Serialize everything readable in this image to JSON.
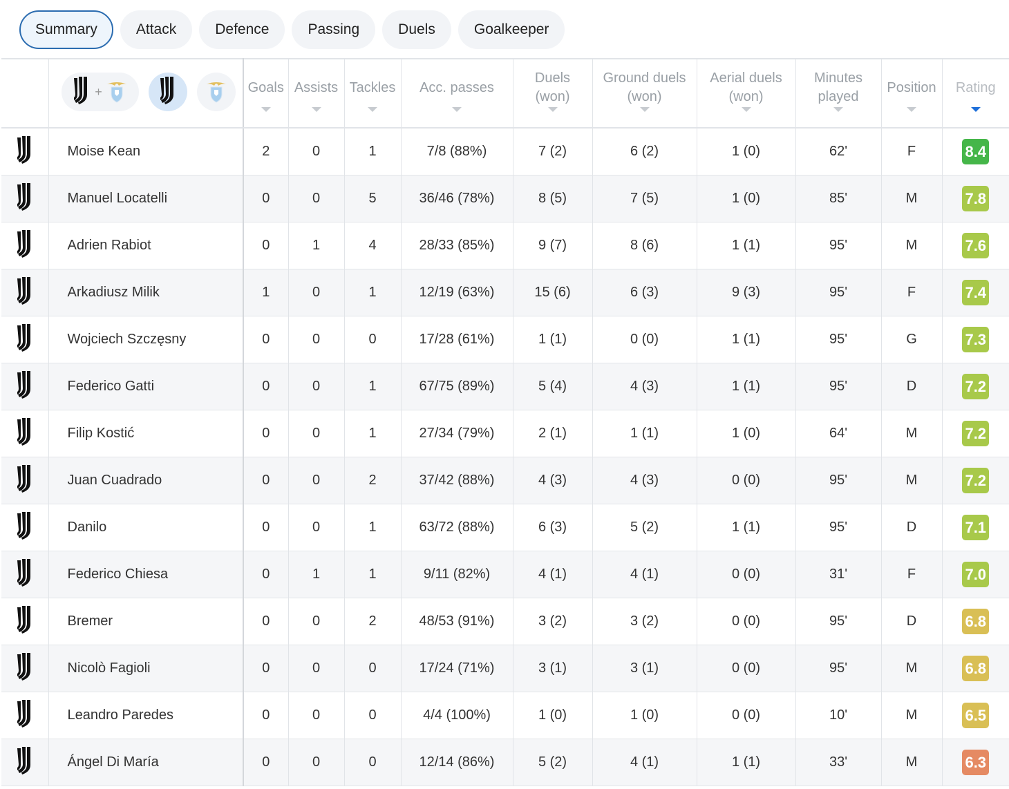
{
  "tabs": [
    {
      "label": "Summary",
      "active": true
    },
    {
      "label": "Attack",
      "active": false
    },
    {
      "label": "Defence",
      "active": false
    },
    {
      "label": "Passing",
      "active": false
    },
    {
      "label": "Duels",
      "active": false
    },
    {
      "label": "Goalkeeper",
      "active": false
    }
  ],
  "team_filter": {
    "options": [
      "juventus+lazio",
      "juventus",
      "lazio"
    ],
    "selected": "juventus",
    "plus": "+"
  },
  "columns": {
    "goals": "Goals",
    "assists": "Assists",
    "tackles": "Tackles",
    "acc_passes": "Acc. passes",
    "duels_1": "Duels",
    "duels_2": "(won)",
    "ground_1": "Ground duels",
    "ground_2": "(won)",
    "aerial_1": "Aerial duels",
    "aerial_2": "(won)",
    "minutes_1": "Minutes",
    "minutes_2": "played",
    "position": "Position",
    "rating": "Rating",
    "sorted_by": "rating"
  },
  "colors": {
    "rating_dark_green": "#45b649",
    "rating_green": "#a8c94a",
    "rating_yellow": "#d9bf55",
    "rating_orange": "#e58a63",
    "active_tab_border": "#2b6cb0",
    "sort_active": "#1e6fd9"
  },
  "players": [
    {
      "name": "Moise Kean",
      "goals": "2",
      "assists": "0",
      "tackles": "1",
      "passes": "7/8 (88%)",
      "duels": "7 (2)",
      "ground": "6 (2)",
      "aerial": "1 (0)",
      "minutes": "62'",
      "position": "F",
      "rating": "8.4",
      "color": "#45b649"
    },
    {
      "name": "Manuel Locatelli",
      "goals": "0",
      "assists": "0",
      "tackles": "5",
      "passes": "36/46 (78%)",
      "duels": "8 (5)",
      "ground": "7 (5)",
      "aerial": "1 (0)",
      "minutes": "85'",
      "position": "M",
      "rating": "7.8",
      "color": "#a8c94a"
    },
    {
      "name": "Adrien Rabiot",
      "goals": "0",
      "assists": "1",
      "tackles": "4",
      "passes": "28/33 (85%)",
      "duels": "9 (7)",
      "ground": "8 (6)",
      "aerial": "1 (1)",
      "minutes": "95'",
      "position": "M",
      "rating": "7.6",
      "color": "#a8c94a"
    },
    {
      "name": "Arkadiusz Milik",
      "goals": "1",
      "assists": "0",
      "tackles": "1",
      "passes": "12/19 (63%)",
      "duels": "15 (6)",
      "ground": "6 (3)",
      "aerial": "9 (3)",
      "minutes": "95'",
      "position": "F",
      "rating": "7.4",
      "color": "#a8c94a"
    },
    {
      "name": "Wojciech Szczęsny",
      "goals": "0",
      "assists": "0",
      "tackles": "0",
      "passes": "17/28 (61%)",
      "duels": "1 (1)",
      "ground": "0 (0)",
      "aerial": "1 (1)",
      "minutes": "95'",
      "position": "G",
      "rating": "7.3",
      "color": "#a8c94a"
    },
    {
      "name": "Federico Gatti",
      "goals": "0",
      "assists": "0",
      "tackles": "1",
      "passes": "67/75 (89%)",
      "duels": "5 (4)",
      "ground": "4 (3)",
      "aerial": "1 (1)",
      "minutes": "95'",
      "position": "D",
      "rating": "7.2",
      "color": "#a8c94a"
    },
    {
      "name": "Filip Kostić",
      "goals": "0",
      "assists": "0",
      "tackles": "1",
      "passes": "27/34 (79%)",
      "duels": "2 (1)",
      "ground": "1 (1)",
      "aerial": "1 (0)",
      "minutes": "64'",
      "position": "M",
      "rating": "7.2",
      "color": "#a8c94a"
    },
    {
      "name": "Juan Cuadrado",
      "goals": "0",
      "assists": "0",
      "tackles": "2",
      "passes": "37/42 (88%)",
      "duels": "4 (3)",
      "ground": "4 (3)",
      "aerial": "0 (0)",
      "minutes": "95'",
      "position": "M",
      "rating": "7.2",
      "color": "#a8c94a"
    },
    {
      "name": "Danilo",
      "goals": "0",
      "assists": "0",
      "tackles": "1",
      "passes": "63/72 (88%)",
      "duels": "6 (3)",
      "ground": "5 (2)",
      "aerial": "1 (1)",
      "minutes": "95'",
      "position": "D",
      "rating": "7.1",
      "color": "#a8c94a"
    },
    {
      "name": "Federico Chiesa",
      "goals": "0",
      "assists": "1",
      "tackles": "1",
      "passes": "9/11 (82%)",
      "duels": "4 (1)",
      "ground": "4 (1)",
      "aerial": "0 (0)",
      "minutes": "31'",
      "position": "F",
      "rating": "7.0",
      "color": "#a8c94a"
    },
    {
      "name": "Bremer",
      "goals": "0",
      "assists": "0",
      "tackles": "2",
      "passes": "48/53 (91%)",
      "duels": "3 (2)",
      "ground": "3 (2)",
      "aerial": "0 (0)",
      "minutes": "95'",
      "position": "D",
      "rating": "6.8",
      "color": "#d9bf55"
    },
    {
      "name": "Nicolò Fagioli",
      "goals": "0",
      "assists": "0",
      "tackles": "0",
      "passes": "17/24 (71%)",
      "duels": "3 (1)",
      "ground": "3 (1)",
      "aerial": "0 (0)",
      "minutes": "95'",
      "position": "M",
      "rating": "6.8",
      "color": "#d9bf55"
    },
    {
      "name": "Leandro Paredes",
      "goals": "0",
      "assists": "0",
      "tackles": "0",
      "passes": "4/4 (100%)",
      "duels": "1 (0)",
      "ground": "1 (0)",
      "aerial": "0 (0)",
      "minutes": "10'",
      "position": "M",
      "rating": "6.5",
      "color": "#d9bf55"
    },
    {
      "name": "Ángel Di María",
      "goals": "0",
      "assists": "0",
      "tackles": "0",
      "passes": "12/14 (86%)",
      "duels": "5 (2)",
      "ground": "4 (1)",
      "aerial": "1 (1)",
      "minutes": "33'",
      "position": "M",
      "rating": "6.3",
      "color": "#e58a63"
    }
  ]
}
